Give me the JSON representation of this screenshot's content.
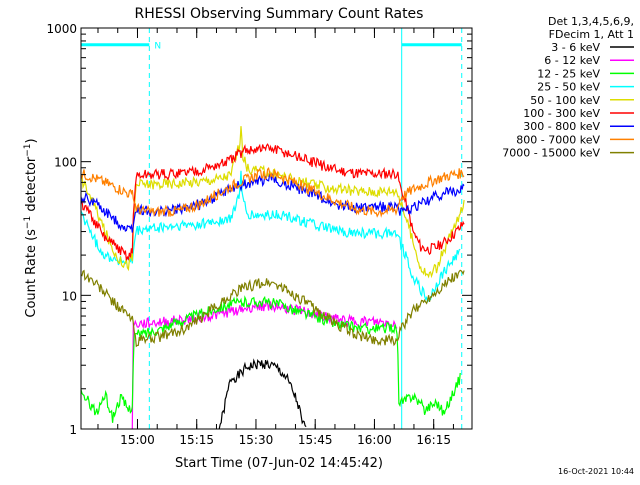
{
  "chart_data": {
    "type": "line",
    "title": "RHESSI Observing Summary Count Rates",
    "xlabel": "Start Time (07-Jun-02 14:45:42)",
    "ylabel": "Count Rate (s⁻¹ detector⁻¹)",
    "ylabel_parts": {
      "main": "Count Rate (s",
      "exp1": "−1",
      "mid": " detector",
      "exp2": "−1",
      "end": ")"
    },
    "x_unit": "minutes after 14:45:42",
    "xlim": [
      0,
      99
    ],
    "ylim": [
      1,
      1000
    ],
    "y_scale": "log",
    "x_ticks": [
      {
        "x": 14.3,
        "label": "15:00"
      },
      {
        "x": 29.3,
        "label": "15:15"
      },
      {
        "x": 44.3,
        "label": "15:30"
      },
      {
        "x": 59.3,
        "label": "15:45"
      },
      {
        "x": 74.3,
        "label": "16:00"
      },
      {
        "x": 89.3,
        "label": "16:15"
      }
    ],
    "y_ticks": [
      {
        "y": 1,
        "label": "1"
      },
      {
        "y": 10,
        "label": "10"
      },
      {
        "y": 100,
        "label": "100"
      },
      {
        "y": 1000,
        "label": "1000"
      }
    ],
    "legend": {
      "placement": "right",
      "header": [
        "Det 1,3,4,5,6,9,",
        "FDecim 1, Att 1"
      ]
    },
    "night_intervals": [
      [
        0,
        17.3
      ],
      [
        81.2,
        96.4
      ]
    ],
    "night_bar_level": 750,
    "night_label": "N",
    "series": [
      {
        "name": "3 - 6 keV",
        "color": "#000000",
        "points": [
          [
            35,
            1
          ],
          [
            36,
            1.3
          ],
          [
            37,
            1.8
          ],
          [
            38,
            2.4
          ],
          [
            40,
            2.5
          ],
          [
            42,
            2.9
          ],
          [
            44,
            3
          ],
          [
            46,
            3.1
          ],
          [
            48,
            3
          ],
          [
            50,
            2.8
          ],
          [
            52,
            2.4
          ],
          [
            54,
            1.8
          ],
          [
            55,
            1.5
          ],
          [
            56,
            1.1
          ],
          [
            57,
            1
          ]
        ]
      },
      {
        "name": "6 - 12 keV",
        "color": "#ff00ff",
        "points": [
          [
            13,
            1
          ],
          [
            13.2,
            6
          ],
          [
            15,
            6.1
          ],
          [
            20,
            6.3
          ],
          [
            25,
            6.5
          ],
          [
            30,
            6.8
          ],
          [
            35,
            7.2
          ],
          [
            40,
            7.8
          ],
          [
            45,
            8.4
          ],
          [
            50,
            8.2
          ],
          [
            55,
            7.7
          ],
          [
            60,
            7.1
          ],
          [
            65,
            6.6
          ],
          [
            70,
            6.4
          ],
          [
            75,
            6.3
          ],
          [
            79,
            6.2
          ],
          [
            80,
            6
          ],
          [
            80.2,
            1
          ]
        ]
      },
      {
        "name": "12 - 25 keV",
        "color": "#00ff00",
        "points": [
          [
            0,
            1.8
          ],
          [
            2,
            1.6
          ],
          [
            4,
            1.3
          ],
          [
            6,
            1.8
          ],
          [
            8,
            1.2
          ],
          [
            10,
            1.7
          ],
          [
            12,
            1.4
          ],
          [
            13,
            1.5
          ],
          [
            13.5,
            5
          ],
          [
            16,
            5.2
          ],
          [
            20,
            5.6
          ],
          [
            25,
            6.4
          ],
          [
            30,
            7.2
          ],
          [
            35,
            8.2
          ],
          [
            40,
            8.8
          ],
          [
            45,
            9
          ],
          [
            50,
            8.6
          ],
          [
            55,
            7.6
          ],
          [
            60,
            6.8
          ],
          [
            65,
            6.1
          ],
          [
            70,
            5.7
          ],
          [
            75,
            5.6
          ],
          [
            79,
            5.8
          ],
          [
            80,
            5.5
          ],
          [
            80.5,
            1.5
          ],
          [
            84,
            1.8
          ],
          [
            87,
            1.4
          ],
          [
            90,
            1.6
          ],
          [
            92,
            1.3
          ],
          [
            94,
            1.8
          ],
          [
            96,
            2.4
          ]
        ]
      },
      {
        "name": "25 - 50 keV",
        "color": "#00ffff",
        "points": [
          [
            0,
            40
          ],
          [
            2,
            32
          ],
          [
            4,
            24
          ],
          [
            6,
            20
          ],
          [
            8,
            19
          ],
          [
            10,
            18
          ],
          [
            13,
            18
          ],
          [
            14,
            30
          ],
          [
            16,
            31
          ],
          [
            20,
            32
          ],
          [
            25,
            33
          ],
          [
            30,
            34
          ],
          [
            35,
            36
          ],
          [
            38,
            37
          ],
          [
            40,
            55
          ],
          [
            40.5,
            80
          ],
          [
            41,
            52
          ],
          [
            42,
            40
          ],
          [
            45,
            39
          ],
          [
            48,
            40
          ],
          [
            50,
            40
          ],
          [
            55,
            37
          ],
          [
            60,
            33
          ],
          [
            65,
            30
          ],
          [
            70,
            29
          ],
          [
            75,
            29
          ],
          [
            80,
            30
          ],
          [
            81,
            24
          ],
          [
            84,
            14
          ],
          [
            86,
            11
          ],
          [
            88,
            9
          ],
          [
            90,
            12
          ],
          [
            92,
            15
          ],
          [
            94,
            18
          ],
          [
            96,
            21
          ]
        ]
      },
      {
        "name": "50 - 100 keV",
        "color": "#dddd00",
        "points": [
          [
            0,
            75
          ],
          [
            2,
            58
          ],
          [
            4,
            42
          ],
          [
            6,
            30
          ],
          [
            8,
            22
          ],
          [
            10,
            18
          ],
          [
            12,
            17
          ],
          [
            13,
            19
          ],
          [
            14,
            68
          ],
          [
            16,
            68
          ],
          [
            20,
            68
          ],
          [
            25,
            69
          ],
          [
            30,
            71
          ],
          [
            35,
            75
          ],
          [
            38,
            80
          ],
          [
            40,
            130
          ],
          [
            40.5,
            170
          ],
          [
            41,
            110
          ],
          [
            42,
            90
          ],
          [
            45,
            85
          ],
          [
            48,
            82
          ],
          [
            50,
            80
          ],
          [
            55,
            72
          ],
          [
            60,
            66
          ],
          [
            65,
            62
          ],
          [
            70,
            60
          ],
          [
            75,
            60
          ],
          [
            80,
            61
          ],
          [
            81,
            48
          ],
          [
            84,
            25
          ],
          [
            86,
            16
          ],
          [
            88,
            14
          ],
          [
            90,
            16
          ],
          [
            92,
            22
          ],
          [
            94,
            30
          ],
          [
            96,
            40
          ],
          [
            97,
            48
          ]
        ]
      },
      {
        "name": "100 - 300 keV",
        "color": "#ff0000",
        "points": [
          [
            0,
            48
          ],
          [
            2,
            42
          ],
          [
            4,
            33
          ],
          [
            6,
            27
          ],
          [
            8,
            24
          ],
          [
            10,
            22
          ],
          [
            12,
            19
          ],
          [
            13,
            22
          ],
          [
            14,
            78
          ],
          [
            16,
            79
          ],
          [
            20,
            80
          ],
          [
            25,
            82
          ],
          [
            30,
            86
          ],
          [
            35,
            94
          ],
          [
            38,
            102
          ],
          [
            40,
            115
          ],
          [
            42,
            122
          ],
          [
            45,
            125
          ],
          [
            48,
            125
          ],
          [
            50,
            120
          ],
          [
            55,
            108
          ],
          [
            60,
            96
          ],
          [
            65,
            86
          ],
          [
            70,
            82
          ],
          [
            75,
            81
          ],
          [
            80,
            82
          ],
          [
            81,
            62
          ],
          [
            84,
            30
          ],
          [
            86,
            23
          ],
          [
            88,
            22
          ],
          [
            90,
            23
          ],
          [
            92,
            25
          ],
          [
            94,
            28
          ],
          [
            96,
            32
          ],
          [
            97,
            35
          ]
        ]
      },
      {
        "name": "300 - 800 keV",
        "color": "#0000ff",
        "points": [
          [
            0,
            55
          ],
          [
            2,
            52
          ],
          [
            4,
            48
          ],
          [
            6,
            42
          ],
          [
            8,
            38
          ],
          [
            10,
            34
          ],
          [
            12,
            31
          ],
          [
            13,
            32
          ],
          [
            14,
            44
          ],
          [
            16,
            43
          ],
          [
            20,
            42
          ],
          [
            25,
            44
          ],
          [
            30,
            48
          ],
          [
            35,
            56
          ],
          [
            40,
            66
          ],
          [
            45,
            72
          ],
          [
            48,
            74
          ],
          [
            50,
            72
          ],
          [
            55,
            63
          ],
          [
            60,
            55
          ],
          [
            65,
            48
          ],
          [
            70,
            45
          ],
          [
            75,
            45
          ],
          [
            80,
            47
          ],
          [
            81,
            41
          ],
          [
            84,
            45
          ],
          [
            86,
            48
          ],
          [
            88,
            51
          ],
          [
            90,
            55
          ],
          [
            92,
            58
          ],
          [
            94,
            60
          ],
          [
            96,
            62
          ],
          [
            97,
            63
          ]
        ]
      },
      {
        "name": "800 - 7000 keV",
        "color": "#ff8000",
        "points": [
          [
            0,
            82
          ],
          [
            2,
            78
          ],
          [
            4,
            74
          ],
          [
            6,
            70
          ],
          [
            8,
            66
          ],
          [
            10,
            62
          ],
          [
            12,
            58
          ],
          [
            13,
            56
          ],
          [
            14,
            45
          ],
          [
            16,
            42
          ],
          [
            20,
            42
          ],
          [
            25,
            43
          ],
          [
            30,
            48
          ],
          [
            35,
            58
          ],
          [
            40,
            70
          ],
          [
            45,
            80
          ],
          [
            48,
            82
          ],
          [
            50,
            79
          ],
          [
            55,
            68
          ],
          [
            60,
            58
          ],
          [
            65,
            50
          ],
          [
            70,
            44
          ],
          [
            75,
            42
          ],
          [
            80,
            44
          ],
          [
            81,
            54
          ],
          [
            84,
            62
          ],
          [
            86,
            66
          ],
          [
            88,
            70
          ],
          [
            90,
            74
          ],
          [
            92,
            77
          ],
          [
            94,
            80
          ],
          [
            96,
            82
          ],
          [
            97,
            83
          ]
        ]
      },
      {
        "name": "7000 - 15000 keV",
        "color": "#808000",
        "points": [
          [
            0,
            15
          ],
          [
            2,
            13.5
          ],
          [
            4,
            12
          ],
          [
            6,
            10.5
          ],
          [
            8,
            9
          ],
          [
            10,
            8
          ],
          [
            12,
            7
          ],
          [
            13,
            6.5
          ],
          [
            14,
            4.5
          ],
          [
            16,
            4.7
          ],
          [
            20,
            4.9
          ],
          [
            25,
            5.4
          ],
          [
            30,
            6.5
          ],
          [
            35,
            8.6
          ],
          [
            40,
            11
          ],
          [
            45,
            12.3
          ],
          [
            48,
            12.5
          ],
          [
            50,
            11.8
          ],
          [
            55,
            9.6
          ],
          [
            60,
            7.6
          ],
          [
            65,
            6
          ],
          [
            70,
            5
          ],
          [
            75,
            4.6
          ],
          [
            80,
            4.6
          ],
          [
            81,
            5.5
          ],
          [
            84,
            7.5
          ],
          [
            86,
            8.6
          ],
          [
            88,
            9.6
          ],
          [
            90,
            10.8
          ],
          [
            92,
            12
          ],
          [
            94,
            13.5
          ],
          [
            96,
            14.5
          ],
          [
            97,
            15
          ]
        ]
      }
    ]
  },
  "timestamp": "16-Oct-2021 10:44"
}
